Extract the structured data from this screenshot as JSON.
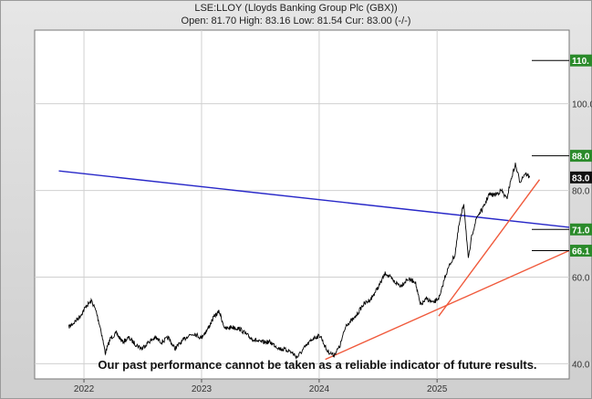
{
  "header": {
    "title": "LSE:LLOY (Lloyds Banking Group Plc (GBX))",
    "quote": "Open: 81.70 High: 83.16 Low: 81.54 Cur: 83.00 (-/-)"
  },
  "disclaimer": "Our past performance cannot be taken as a reliable indicator of future results.",
  "colors": {
    "price": "#000000",
    "trend_blue": "#2828c8",
    "trend_red": "#f05a3c",
    "target_box": "#2a8a2a",
    "current_box": "#111111"
  },
  "chart_data": {
    "type": "line",
    "title": "LSE:LLOY (Lloyds Banking Group Plc (GBX))",
    "xlabel": "",
    "ylabel": "",
    "x_ticks": [
      "2022",
      "2023",
      "2024",
      "2025"
    ],
    "y_ticks": [
      40.0,
      60.0,
      80.0,
      100.0
    ],
    "ylim": [
      36.5,
      117
    ],
    "y_scale": "linear",
    "grid": true,
    "series": [
      {
        "points": [
          [
            "2021-11-15",
            48.5
          ],
          [
            "2021-12-01",
            49.5
          ],
          [
            "2021-12-20",
            51
          ],
          [
            "2022-01-10",
            53.5
          ],
          [
            "2022-01-25",
            54.5
          ],
          [
            "2022-02-08",
            52
          ],
          [
            "2022-02-22",
            48
          ],
          [
            "2022-03-08",
            42.5
          ],
          [
            "2022-03-25",
            46
          ],
          [
            "2022-04-12",
            47
          ],
          [
            "2022-05-01",
            45
          ],
          [
            "2022-05-20",
            46
          ],
          [
            "2022-06-10",
            44.5
          ],
          [
            "2022-06-30",
            43.5
          ],
          [
            "2022-07-20",
            45
          ],
          [
            "2022-08-10",
            46
          ],
          [
            "2022-08-30",
            45
          ],
          [
            "2022-09-20",
            46
          ],
          [
            "2022-10-10",
            43.5
          ],
          [
            "2022-10-30",
            45
          ],
          [
            "2022-11-20",
            46.5
          ],
          [
            "2022-12-10",
            47
          ],
          [
            "2022-12-30",
            46
          ],
          [
            "2023-01-20",
            48
          ],
          [
            "2023-02-10",
            51
          ],
          [
            "2023-02-25",
            52
          ],
          [
            "2023-03-15",
            48
          ],
          [
            "2023-04-05",
            48.5
          ],
          [
            "2023-05-01",
            48
          ],
          [
            "2023-06-01",
            46
          ],
          [
            "2023-07-01",
            45
          ],
          [
            "2023-08-01",
            45
          ],
          [
            "2023-09-01",
            43.5
          ],
          [
            "2023-10-01",
            43
          ],
          [
            "2023-10-25",
            41.5
          ],
          [
            "2023-11-20",
            44
          ],
          [
            "2023-12-15",
            46
          ],
          [
            "2024-01-05",
            46.5
          ],
          [
            "2024-01-25",
            43
          ],
          [
            "2024-02-15",
            42
          ],
          [
            "2024-03-05",
            44
          ],
          [
            "2024-03-25",
            49
          ],
          [
            "2024-04-20",
            50.5
          ],
          [
            "2024-05-15",
            53.5
          ],
          [
            "2024-06-10",
            55
          ],
          [
            "2024-07-05",
            58
          ],
          [
            "2024-07-25",
            61
          ],
          [
            "2024-08-20",
            59
          ],
          [
            "2024-09-10",
            58
          ],
          [
            "2024-10-01",
            59.5
          ],
          [
            "2024-10-25",
            59
          ],
          [
            "2024-11-10",
            53.5
          ],
          [
            "2024-11-30",
            55
          ],
          [
            "2024-12-20",
            54
          ],
          [
            "2025-01-10",
            55.5
          ],
          [
            "2025-01-25",
            60
          ],
          [
            "2025-02-10",
            63
          ],
          [
            "2025-02-25",
            65
          ],
          [
            "2025-03-10",
            72
          ],
          [
            "2025-03-25",
            77
          ],
          [
            "2025-04-08",
            64
          ],
          [
            "2025-04-20",
            70
          ],
          [
            "2025-05-05",
            74
          ],
          [
            "2025-05-25",
            76
          ],
          [
            "2025-06-10",
            79
          ],
          [
            "2025-06-30",
            79
          ],
          [
            "2025-07-20",
            80
          ],
          [
            "2025-08-05",
            78
          ],
          [
            "2025-08-20",
            83
          ],
          [
            "2025-09-01",
            86
          ],
          [
            "2025-09-15",
            82
          ],
          [
            "2025-10-01",
            84
          ],
          [
            "2025-10-15",
            83
          ]
        ]
      }
    ],
    "trendlines": [
      {
        "color": "blue",
        "points": [
          [
            "2021-10-15",
            84.5
          ],
          [
            "2026-02-15",
            71.5
          ]
        ]
      },
      {
        "color": "red",
        "points": [
          [
            "2024-01-20",
            41
          ],
          [
            "2026-02-15",
            66.1
          ]
        ]
      },
      {
        "color": "red",
        "points": [
          [
            "2025-01-06",
            51
          ],
          [
            "2025-11-15",
            82.5
          ]
        ]
      }
    ],
    "annotations": {
      "target_labels": [
        "110.",
        "88.0",
        "71.0",
        "66.1"
      ],
      "target_values": [
        110.0,
        88.0,
        71.0,
        66.1
      ],
      "current_label": "83.0",
      "current_value": 83.0
    }
  }
}
